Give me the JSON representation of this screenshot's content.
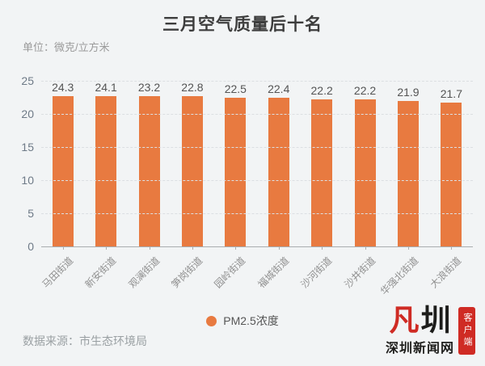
{
  "title": "三月空气质量后十名",
  "unit_label": "单位：微克/立方米",
  "source": "数据来源：市生态环境局",
  "legend": {
    "label": "PM2.5浓度",
    "marker": "circle"
  },
  "colors": {
    "background": "#f2f4f5",
    "bar": "#e87a40",
    "gridline": "#dcdfe2",
    "axis": "#a9adb0",
    "title_text": "#3d3d3d",
    "muted_text": "#9a9a9a",
    "value_text": "#545454",
    "logo_red": "#cf2b24",
    "logo_black": "#1d1d1b"
  },
  "logo": {
    "glyph_red": "凡",
    "glyph_black": "圳",
    "name": "深圳新闻网",
    "badge": "客户端"
  },
  "chart_data": {
    "type": "bar",
    "title": "三月空气质量后十名",
    "series_name": "PM2.5浓度",
    "categories": [
      "马田街道",
      "新安街道",
      "观澜街道",
      "笋岗街道",
      "园岭街道",
      "福城街道",
      "沙河街道",
      "沙井街道",
      "华强北街道",
      "大浪街道"
    ],
    "values": [
      24.3,
      24.1,
      23.2,
      22.8,
      22.5,
      22.4,
      22.2,
      22.2,
      21.9,
      21.7
    ],
    "value_decimals": 1,
    "xlabel": "",
    "ylabel": "微克/立方米",
    "ylim": [
      0,
      25
    ],
    "yticks": [
      0,
      5,
      10,
      15,
      20,
      25
    ],
    "grid": "dashed-horizontal",
    "xlabel_rotation": 45,
    "legend_position": "bottom"
  }
}
